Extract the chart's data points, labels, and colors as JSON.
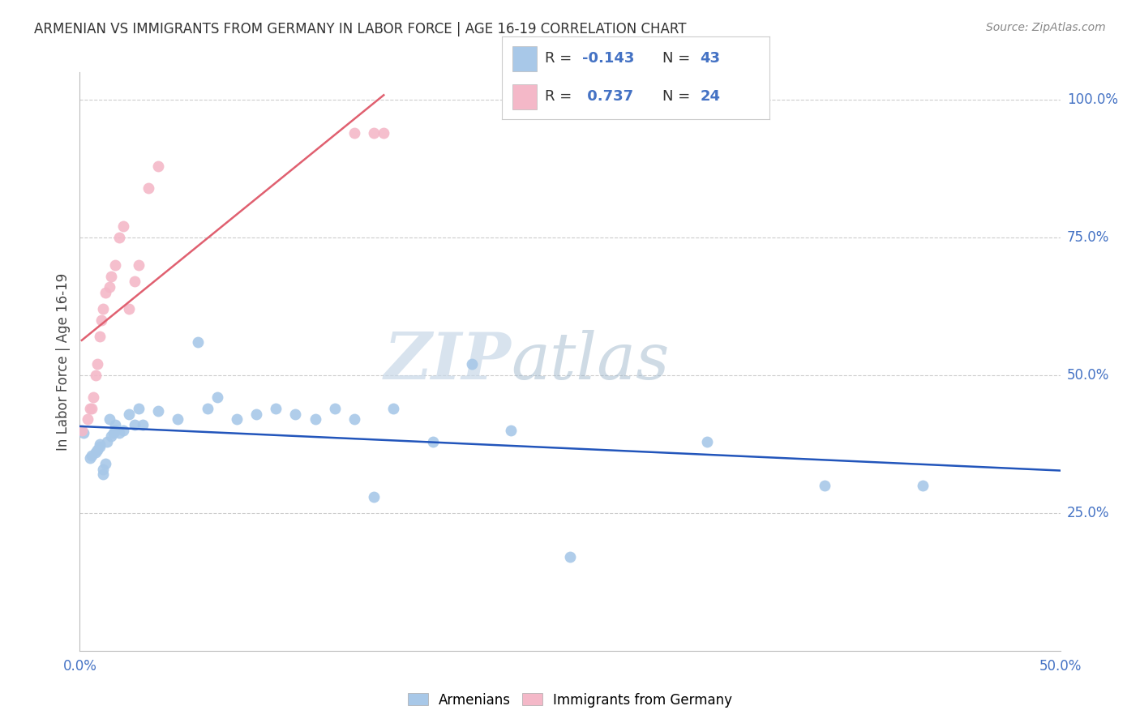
{
  "title": "ARMENIAN VS IMMIGRANTS FROM GERMANY IN LABOR FORCE | AGE 16-19 CORRELATION CHART",
  "source": "Source: ZipAtlas.com",
  "ylabel": "In Labor Force | Age 16-19",
  "x_min": 0.0,
  "x_max": 0.5,
  "y_min": 0.0,
  "y_max": 1.05,
  "x_ticks": [
    0.0,
    0.1,
    0.2,
    0.3,
    0.4,
    0.5
  ],
  "x_tick_labels": [
    "0.0%",
    "",
    "",
    "",
    "",
    "50.0%"
  ],
  "y_ticks_right": [
    0.0,
    0.25,
    0.5,
    0.75,
    1.0
  ],
  "y_tick_labels_right": [
    "",
    "25.0%",
    "50.0%",
    "75.0%",
    "100.0%"
  ],
  "armenian_color": "#a8c8e8",
  "german_color": "#f4b8c8",
  "armenian_line_color": "#2255bb",
  "german_line_color": "#e06070",
  "r_armenian": -0.143,
  "n_armenian": 43,
  "r_german": 0.737,
  "n_german": 24,
  "legend_r_color": "#4472c4",
  "legend_n_color": "#4472c4",
  "watermark_zip": "ZIP",
  "watermark_atlas": "atlas",
  "armenian_scatter_x": [
    0.002,
    0.005,
    0.006,
    0.008,
    0.009,
    0.01,
    0.01,
    0.012,
    0.012,
    0.013,
    0.014,
    0.015,
    0.016,
    0.017,
    0.018,
    0.018,
    0.02,
    0.022,
    0.025,
    0.028,
    0.03,
    0.032,
    0.04,
    0.05,
    0.06,
    0.065,
    0.07,
    0.08,
    0.09,
    0.1,
    0.11,
    0.12,
    0.13,
    0.14,
    0.15,
    0.16,
    0.18,
    0.2,
    0.22,
    0.25,
    0.32,
    0.38,
    0.43
  ],
  "armenian_scatter_y": [
    0.395,
    0.35,
    0.355,
    0.36,
    0.365,
    0.37,
    0.375,
    0.32,
    0.33,
    0.34,
    0.38,
    0.42,
    0.39,
    0.395,
    0.4,
    0.41,
    0.395,
    0.4,
    0.43,
    0.41,
    0.44,
    0.41,
    0.435,
    0.42,
    0.56,
    0.44,
    0.46,
    0.42,
    0.43,
    0.44,
    0.43,
    0.42,
    0.44,
    0.42,
    0.28,
    0.44,
    0.38,
    0.52,
    0.4,
    0.17,
    0.38,
    0.3,
    0.3
  ],
  "german_scatter_x": [
    0.001,
    0.004,
    0.005,
    0.006,
    0.007,
    0.008,
    0.009,
    0.01,
    0.011,
    0.012,
    0.013,
    0.015,
    0.016,
    0.018,
    0.02,
    0.022,
    0.025,
    0.028,
    0.03,
    0.035,
    0.04,
    0.14,
    0.15,
    0.155
  ],
  "german_scatter_y": [
    0.4,
    0.42,
    0.44,
    0.44,
    0.46,
    0.5,
    0.52,
    0.57,
    0.6,
    0.62,
    0.65,
    0.66,
    0.68,
    0.7,
    0.75,
    0.77,
    0.62,
    0.67,
    0.7,
    0.84,
    0.88,
    0.94,
    0.94,
    0.94
  ]
}
